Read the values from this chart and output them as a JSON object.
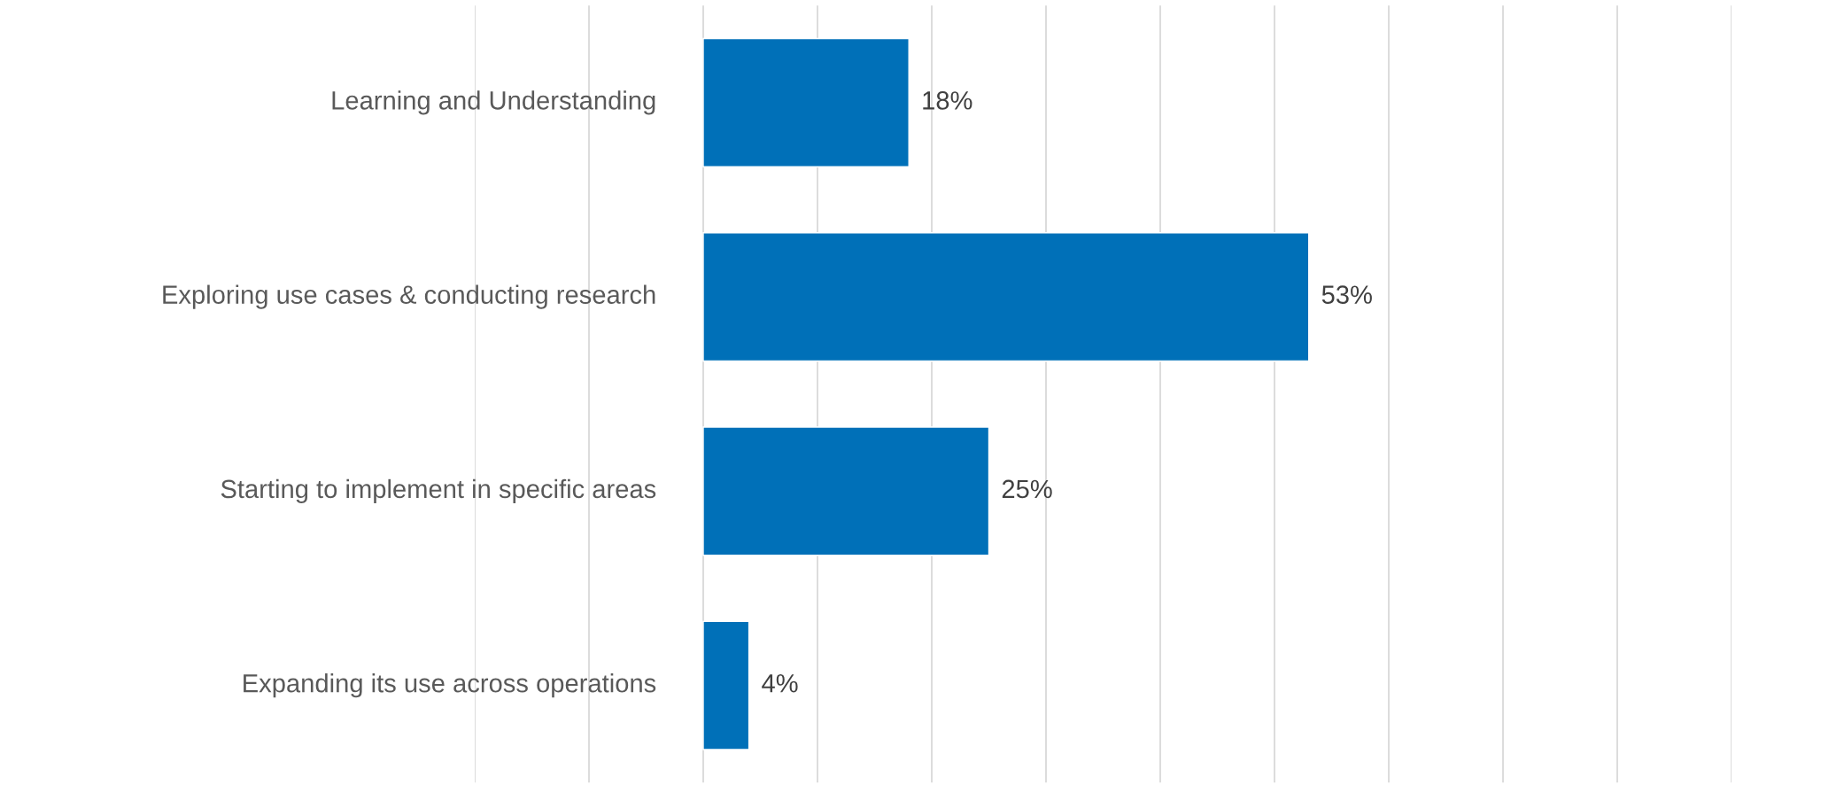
{
  "chart_data": {
    "type": "bar",
    "orientation": "horizontal",
    "categories": [
      "Learning and Understanding",
      "Exploring use cases & conducting research",
      "Starting to implement in specific areas",
      "Expanding its use across operations"
    ],
    "values": [
      18,
      53,
      25,
      4
    ],
    "color": "#0070b8",
    "value_labels": [
      "18%",
      "53%",
      "25%",
      "4%"
    ],
    "xticks": [
      {
        "value": -20,
        "label": null
      },
      {
        "value": -10,
        "label": null
      },
      {
        "value": 0,
        "label": null
      },
      {
        "value": 10,
        "label": null
      },
      {
        "value": 20,
        "label": null
      },
      {
        "value": 30,
        "label": null
      },
      {
        "value": 40,
        "label": null
      },
      {
        "value": 50,
        "label": null
      },
      {
        "value": 60,
        "label": null
      },
      {
        "value": 70,
        "label": null
      },
      {
        "value": 80,
        "label": null
      },
      {
        "value": 90,
        "label": null
      }
    ],
    "grid": "x",
    "tick_labels": "y",
    "legend": false
  }
}
